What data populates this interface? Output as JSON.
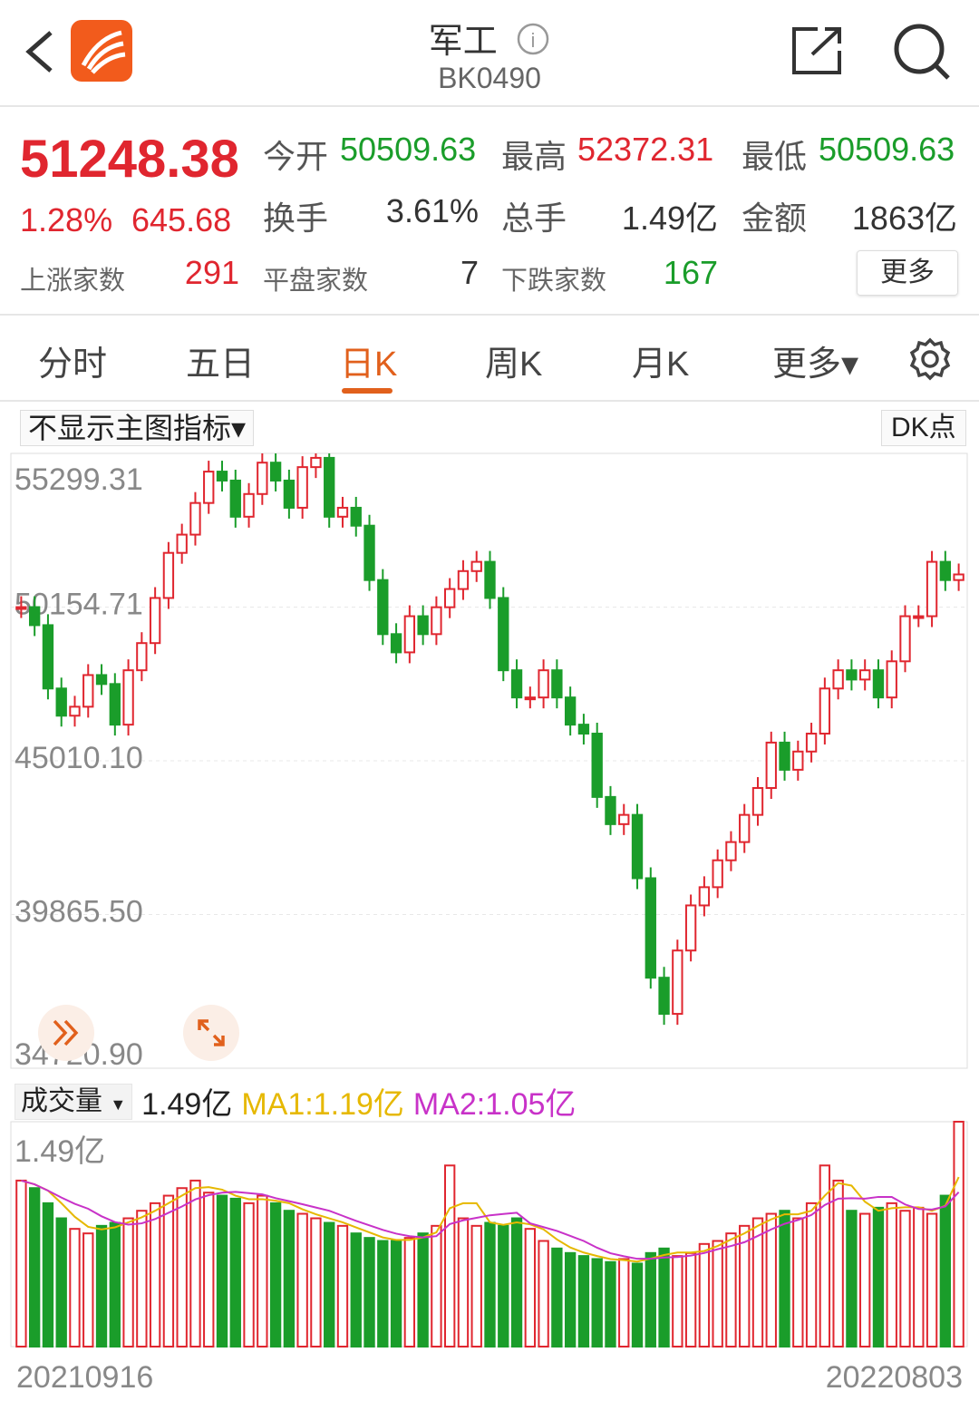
{
  "header": {
    "title": "军工",
    "code": "BK0490",
    "back_icon": "chevron-left-icon",
    "logo_icon": "app-logo-icon",
    "info_icon": "info-icon",
    "share_icon": "share-icon",
    "search_icon": "search-icon"
  },
  "quote": {
    "price": "51248.38",
    "change_pct": "1.28%",
    "change": "645.68",
    "open_label": "今开",
    "open": "50509.63",
    "high_label": "最高",
    "high": "52372.31",
    "low_label": "最低",
    "low": "50509.63",
    "turnover_label": "换手",
    "turnover": "3.61%",
    "volume_label": "总手",
    "volume": "1.49亿",
    "amount_label": "金额",
    "amount": "1863亿",
    "up_label": "上涨家数",
    "up": "291",
    "flat_label": "平盘家数",
    "flat": "7",
    "down_label": "下跌家数",
    "down": "167",
    "more_button": "更多"
  },
  "tabs": [
    {
      "label": "分时"
    },
    {
      "label": "五日"
    },
    {
      "label": "日K",
      "active": true
    },
    {
      "label": "周K"
    },
    {
      "label": "月K"
    },
    {
      "label": "更多▾"
    }
  ],
  "settings_icon": "gear-icon",
  "indicator_select": "不显示主图指标▾",
  "dk_button": "DK点",
  "volume_bar": {
    "select": "成交量",
    "value": "1.49亿",
    "ma1": "MA1:1.19亿",
    "ma2": "MA2:1.05亿"
  },
  "colors": {
    "up": "#e0262f",
    "down": "#1a9d2a",
    "accent": "#e1601c",
    "ma1": "#e6b800",
    "ma2": "#c832c8"
  },
  "chart_data": {
    "type": "candlestick",
    "y_ticks": [
      "55299.31",
      "50154.71",
      "45010.10",
      "39865.50",
      "34720.90"
    ],
    "ylim": [
      34720.9,
      55299.31
    ],
    "x_start": "20210916",
    "x_end": "20220803",
    "closes": [
      50154,
      49550,
      47430,
      46520,
      46820,
      47880,
      47580,
      46220,
      48040,
      48950,
      50460,
      51970,
      52580,
      53640,
      54690,
      54390,
      53180,
      53940,
      54990,
      54390,
      53480,
      54840,
      55150,
      53180,
      53480,
      52880,
      51060,
      49250,
      48640,
      49850,
      49250,
      50150,
      50760,
      51360,
      51670,
      50460,
      48040,
      47130,
      47130,
      48040,
      47130,
      46220,
      45920,
      43800,
      42890,
      43200,
      41080,
      37750,
      36540,
      38660,
      40170,
      40780,
      41680,
      42290,
      43200,
      44100,
      45620,
      44710,
      45320,
      45920,
      47430,
      48040,
      47730,
      48040,
      47130,
      48340,
      49850,
      49850,
      51670,
      51060,
      51248
    ],
    "volume_top_label": "1.49亿",
    "volume_max": 1.49,
    "volumes": [
      1.1,
      1.05,
      0.95,
      0.85,
      0.78,
      0.75,
      0.8,
      0.82,
      0.85,
      0.9,
      0.95,
      1.0,
      1.05,
      1.1,
      1.02,
      1.0,
      0.98,
      0.95,
      1.0,
      0.95,
      0.9,
      0.88,
      0.85,
      0.82,
      0.8,
      0.75,
      0.72,
      0.7,
      0.7,
      0.72,
      0.75,
      0.8,
      1.2,
      0.85,
      0.8,
      0.82,
      0.8,
      0.85,
      0.78,
      0.7,
      0.65,
      0.62,
      0.6,
      0.58,
      0.56,
      0.58,
      0.55,
      0.62,
      0.65,
      0.6,
      0.62,
      0.68,
      0.7,
      0.75,
      0.8,
      0.85,
      0.88,
      0.9,
      0.85,
      0.95,
      1.2,
      1.1,
      0.9,
      0.88,
      0.92,
      0.95,
      0.9,
      0.92,
      0.88,
      1.0,
      1.49
    ]
  }
}
